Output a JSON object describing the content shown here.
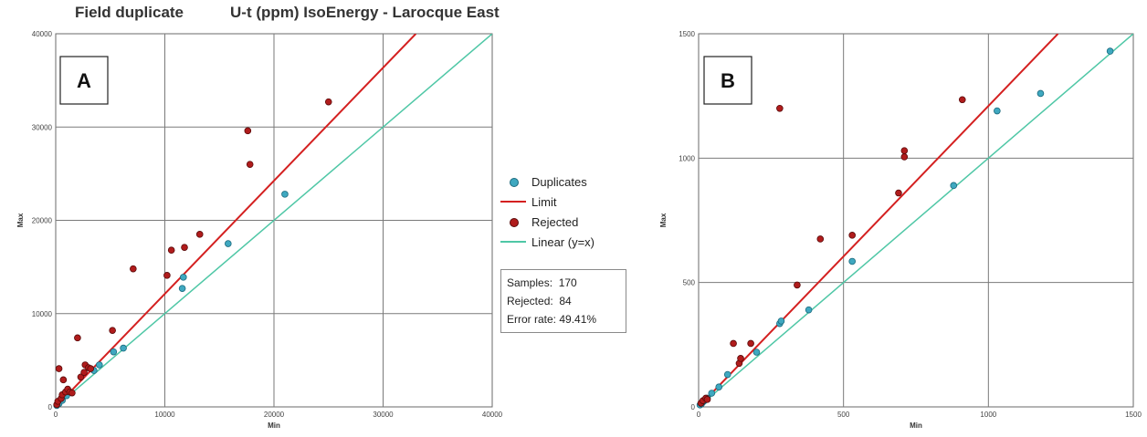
{
  "title": {
    "left": "Field duplicate",
    "right": "U-t (ppm)  IsoEnergy - Larocque East"
  },
  "legend": [
    {
      "label": "Duplicates",
      "kind": "dot",
      "color": "#3fa8c0"
    },
    {
      "label": "Limit",
      "kind": "line",
      "color": "#d42020"
    },
    {
      "label": "Rejected",
      "kind": "dot",
      "color": "#b01c1c"
    },
    {
      "label": "Linear (y=x)",
      "kind": "line",
      "color": "#4fc7a6"
    }
  ],
  "stats": {
    "samples": "Samples:  170",
    "rejected": "Rejected:  84",
    "error_rate": "Error rate: 49.41%"
  },
  "chart_data": [
    {
      "type": "scatter",
      "panel": "A",
      "xlabel": "Min",
      "ylabel": "Max",
      "xlim": [
        0,
        40000
      ],
      "ylim": [
        0,
        40000
      ],
      "xticks": [
        "0",
        "10000",
        "20000",
        "30000",
        "40000"
      ],
      "yticks": [
        "0",
        "10000",
        "20000",
        "30000",
        "40000"
      ],
      "grid": true,
      "lines": [
        {
          "name": "Limit",
          "color": "#d42020",
          "points": [
            [
              0,
              0
            ],
            [
              33000,
              40000
            ]
          ]
        },
        {
          "name": "Linear (y=x)",
          "color": "#4fc7a6",
          "points": [
            [
              0,
              0
            ],
            [
              40000,
              40000
            ]
          ]
        }
      ],
      "series": [
        {
          "name": "Duplicates",
          "color": "#3fa8c0",
          "points": [
            [
              100,
              150
            ],
            [
              300,
              350
            ],
            [
              600,
              700
            ],
            [
              1000,
              1200
            ],
            [
              3500,
              3900
            ],
            [
              4000,
              4500
            ],
            [
              5300,
              5900
            ],
            [
              6200,
              6300
            ],
            [
              11600,
              12700
            ],
            [
              11700,
              13900
            ],
            [
              15800,
              17500
            ],
            [
              21000,
              22800
            ]
          ]
        },
        {
          "name": "Rejected",
          "color": "#b01c1c",
          "points": [
            [
              100,
              250
            ],
            [
              200,
              600
            ],
            [
              300,
              4100
            ],
            [
              500,
              900
            ],
            [
              600,
              1300
            ],
            [
              700,
              2900
            ],
            [
              900,
              1600
            ],
            [
              1100,
              1900
            ],
            [
              1300,
              1600
            ],
            [
              1500,
              1500
            ],
            [
              2000,
              7400
            ],
            [
              2300,
              3200
            ],
            [
              2600,
              3700
            ],
            [
              2700,
              4500
            ],
            [
              3000,
              4200
            ],
            [
              3200,
              4100
            ],
            [
              5200,
              8200
            ],
            [
              7100,
              14800
            ],
            [
              10200,
              14100
            ],
            [
              10600,
              16800
            ],
            [
              11800,
              17100
            ],
            [
              13200,
              18500
            ],
            [
              17600,
              29600
            ],
            [
              17800,
              26000
            ],
            [
              25000,
              32700
            ]
          ]
        }
      ]
    },
    {
      "type": "scatter",
      "panel": "B",
      "xlabel": "Min",
      "ylabel": "Max",
      "xlim": [
        0,
        1500
      ],
      "ylim": [
        0,
        1500
      ],
      "xticks": [
        "0",
        "500",
        "1000",
        "1500"
      ],
      "yticks": [
        "0",
        "500",
        "1000",
        "1500"
      ],
      "grid": true,
      "lines": [
        {
          "name": "Limit",
          "color": "#d42020",
          "points": [
            [
              0,
              0
            ],
            [
              1240,
              1500
            ]
          ]
        },
        {
          "name": "Linear (y=x)",
          "color": "#4fc7a6",
          "points": [
            [
              0,
              0
            ],
            [
              1500,
              1500
            ]
          ]
        }
      ],
      "series": [
        {
          "name": "Duplicates",
          "color": "#3fa8c0",
          "points": [
            [
              5,
              8
            ],
            [
              10,
              12
            ],
            [
              15,
              20
            ],
            [
              20,
              25
            ],
            [
              30,
              35
            ],
            [
              45,
              55
            ],
            [
              70,
              80
            ],
            [
              100,
              130
            ],
            [
              200,
              220
            ],
            [
              280,
              335
            ],
            [
              285,
              345
            ],
            [
              380,
              390
            ],
            [
              530,
              585
            ],
            [
              880,
              890
            ],
            [
              1030,
              1190
            ],
            [
              1180,
              1260
            ],
            [
              1420,
              1430
            ]
          ]
        },
        {
          "name": "Rejected",
          "color": "#b01c1c",
          "points": [
            [
              8,
              15
            ],
            [
              15,
              25
            ],
            [
              25,
              35
            ],
            [
              30,
              30
            ],
            [
              120,
              255
            ],
            [
              140,
              175
            ],
            [
              145,
              195
            ],
            [
              180,
              255
            ],
            [
              280,
              1200
            ],
            [
              340,
              490
            ],
            [
              420,
              675
            ],
            [
              530,
              690
            ],
            [
              690,
              860
            ],
            [
              710,
              1005
            ],
            [
              710,
              1030
            ],
            [
              910,
              1235
            ]
          ]
        }
      ]
    }
  ]
}
